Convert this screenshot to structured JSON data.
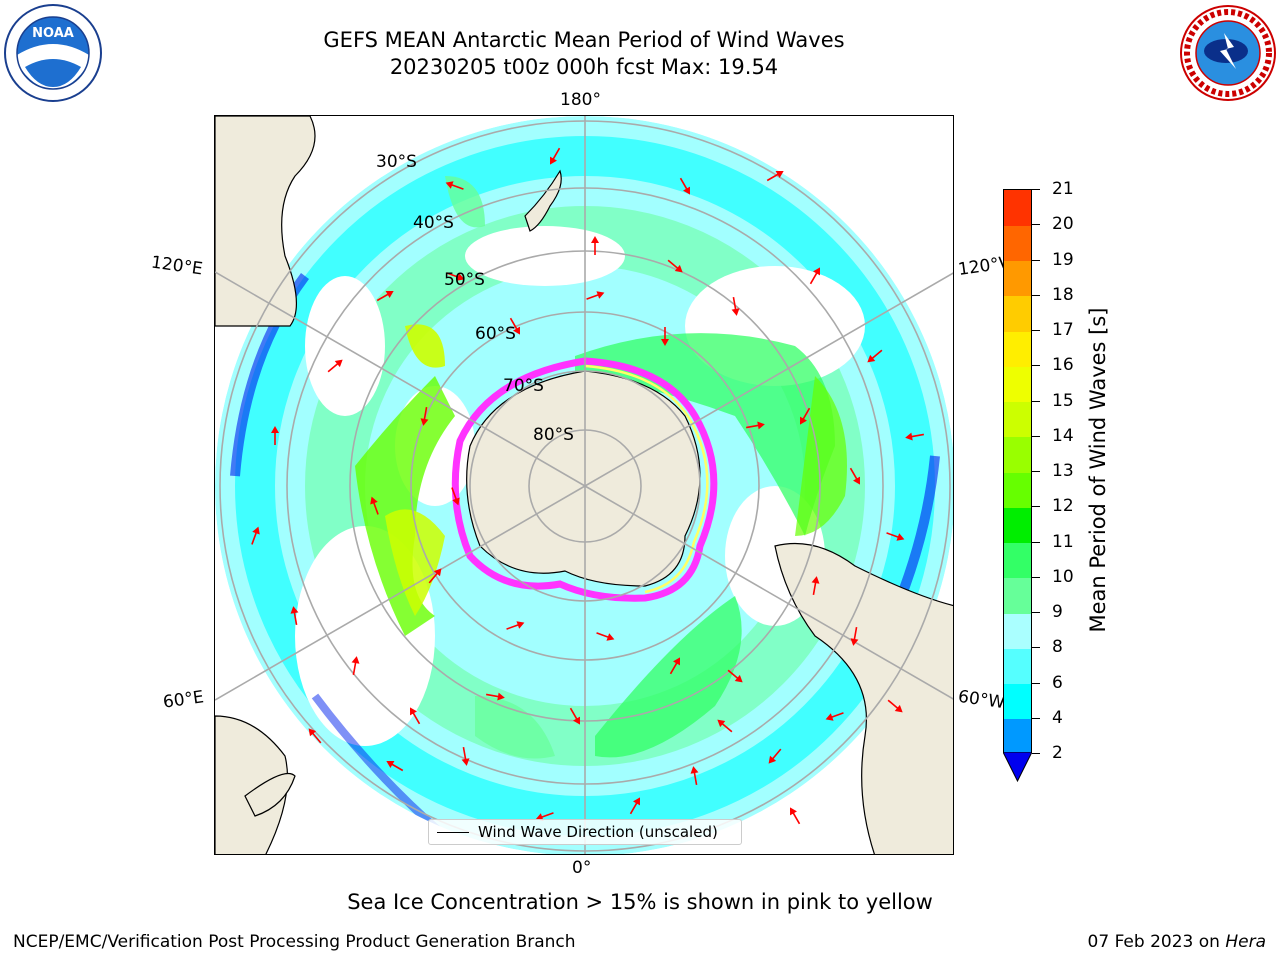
{
  "title": {
    "line1": "GEFS MEAN Antarctic Mean Period of Wind Waves",
    "line2": "20230205 t00z 000h fcst   Max: 19.54"
  },
  "logos": {
    "left": {
      "name": "NOAA",
      "ring_text": "NATIONAL OCEANIC AND ATMOSPHERIC ADMINISTRATION · U.S. DEPARTMENT OF COMMERCE"
    },
    "right": {
      "ring_text": "NATIONAL WEATHER SERVICE"
    }
  },
  "map": {
    "projection": "south-polar-stereographic",
    "longitude_labels": {
      "top": "180°",
      "bottom": "0°",
      "upper_left": "120°E",
      "upper_right": "120°W",
      "lower_left": "60°E",
      "lower_right": "60°W"
    },
    "latitude_labels": [
      "30°S",
      "40°S",
      "50°S",
      "60°S",
      "70°S",
      "80°S"
    ],
    "land_color": "#efebdc",
    "sea_ice_colors": [
      "#ff33ff",
      "#ffaaff",
      "#ffff66"
    ],
    "arrow_color": "#ff0000"
  },
  "legend": {
    "label": "Wind Wave Direction (unscaled)"
  },
  "colorbar": {
    "label": "Mean Period of Wind Waves [s]",
    "ticks": [
      "2",
      "4",
      "6",
      "8",
      "9",
      "10",
      "11",
      "12",
      "13",
      "14",
      "15",
      "16",
      "17",
      "18",
      "19",
      "20",
      "21"
    ],
    "colors": [
      "#0022ee",
      "#0099ff",
      "#00ffff",
      "#55ffff",
      "#aaffff",
      "#66ff99",
      "#33ff66",
      "#00ee00",
      "#66ff00",
      "#99ff00",
      "#ccff00",
      "#eeff00",
      "#ffee00",
      "#ffcc00",
      "#ff9900",
      "#ff6600",
      "#ff3300",
      "#ff0000"
    ],
    "extend_color": "#0000ee"
  },
  "caption": "Sea Ice Concentration > 15% is shown in pink to yellow",
  "footer": {
    "left": "NCEP/EMC/Verification Post Processing Product Generation Branch",
    "right_date": "07 Feb 2023 on ",
    "right_host": "Hera"
  }
}
